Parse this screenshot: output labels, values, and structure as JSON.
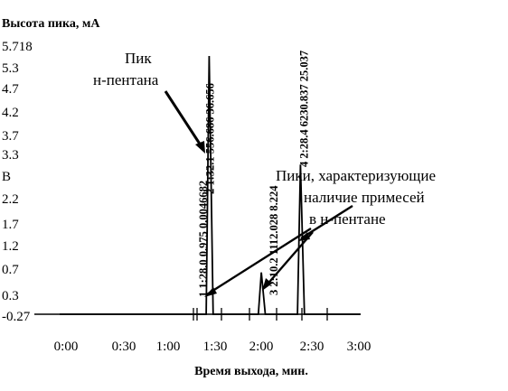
{
  "chart_data": {
    "type": "line",
    "ylabel": "Высота пика, мА",
    "xlabel": "Время выхода, мин.",
    "y_ticks": [
      "5.718",
      "5.3",
      "4.7",
      "4.2",
      "3.7",
      "3.3",
      "B",
      "2.2",
      "1.7",
      "1.2",
      "0.7",
      "0.3",
      "-0.27"
    ],
    "x_ticks": [
      "0:00",
      "0:30",
      "1:00",
      "1:30",
      "2:00",
      "2:30",
      "3:00"
    ],
    "ylim": [
      -0.27,
      5.718
    ],
    "series": [
      {
        "points": [
          {
            "x": 0.0,
            "y": -0.27
          },
          {
            "x": 1.46,
            "y": -0.27
          },
          {
            "x": 1.49,
            "y": 5.718
          },
          {
            "x": 1.53,
            "y": -0.27
          },
          {
            "x": 1.98,
            "y": -0.27
          },
          {
            "x": 2.01,
            "y": 0.7
          },
          {
            "x": 2.05,
            "y": -0.27
          },
          {
            "x": 2.37,
            "y": -0.27
          },
          {
            "x": 2.4,
            "y": 3.2
          },
          {
            "x": 2.44,
            "y": -0.27
          },
          {
            "x": 3.0,
            "y": -0.27
          }
        ]
      }
    ],
    "peak_labels": [
      {
        "text": "1 1:28.0 0.975 0.0046682",
        "x": 1.467
      },
      {
        "text": "2 1:32.1 556.686 36.656",
        "x": 1.535
      },
      {
        "text": "3 2:10.2 1112.028 8.224",
        "x": 2.17
      },
      {
        "text": "4 2:28.4 6230.837 25.037",
        "x": 2.473
      }
    ],
    "annotations": [
      {
        "id": "pentane",
        "lines": [
          "Пик",
          "н-пентана"
        ]
      },
      {
        "id": "impurities",
        "lines": [
          "Пики, характеризующие",
          "наличие примесей",
          "в н-пентане"
        ]
      }
    ]
  }
}
